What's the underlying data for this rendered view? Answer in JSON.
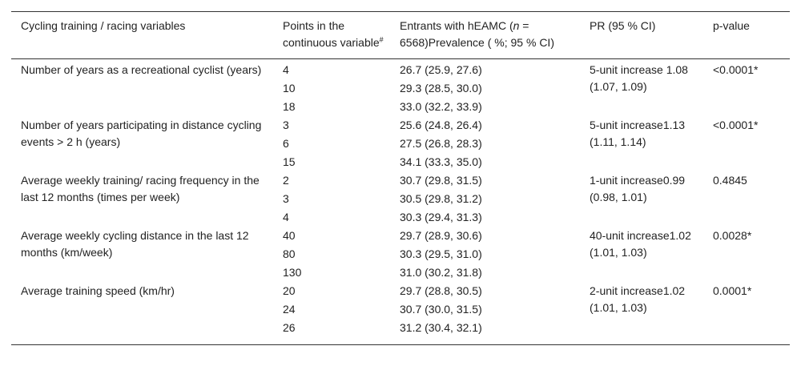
{
  "table": {
    "headers": {
      "variable": "Cycling training / racing variables",
      "points": "Points in the continuous variable",
      "points_sup": "#",
      "entrants_pre": "Entrants with hEAMC (",
      "entrants_n": "n",
      "entrants_post": " = 6568)Prevalence ( %; 95 % CI)",
      "pr": "PR (95 % CI)",
      "pvalue": "p-value"
    },
    "rows": [
      {
        "variable": "Number of years as a recreational cyclist (years)",
        "points": [
          "4",
          "10",
          "18"
        ],
        "prevalence": [
          "26.7 (25.9, 27.6)",
          "29.3 (28.5, 30.0)",
          "33.0 (32.2, 33.9)"
        ],
        "pr": "5-unit increase 1.08 (1.07, 1.09)",
        "pvalue": "<0.0001*"
      },
      {
        "variable": "Number of years participating in distance cycling events > 2 h (years)",
        "points": [
          "3",
          "6",
          "15"
        ],
        "prevalence": [
          "25.6 (24.8, 26.4)",
          "27.5 (26.8, 28.3)",
          "34.1 (33.3, 35.0)"
        ],
        "pr": "5-unit increase1.13 (1.11, 1.14)",
        "pvalue": "<0.0001*"
      },
      {
        "variable": "Average weekly training/ racing frequency in the last 12 months (times per week)",
        "points": [
          "2",
          "3",
          "4"
        ],
        "prevalence": [
          "30.7 (29.8, 31.5)",
          "30.5 (29.8, 31.2)",
          "30.3 (29.4, 31.3)"
        ],
        "pr": "1-unit increase0.99 (0.98, 1.01)",
        "pvalue": "0.4845"
      },
      {
        "variable": "Average weekly cycling distance in the last 12 months (km/week)",
        "points": [
          "40",
          "80",
          "130"
        ],
        "prevalence": [
          "29.7 (28.9, 30.6)",
          "30.3 (29.5, 31.0)",
          "31.0 (30.2, 31.8)"
        ],
        "pr": "40-unit increase1.02 (1.01, 1.03)",
        "pvalue": "0.0028*"
      },
      {
        "variable": "Average training speed (km/hr)",
        "points": [
          "20",
          "24",
          "26"
        ],
        "prevalence": [
          "29.7 (28.8, 30.5)",
          "30.7 (30.0, 31.5)",
          "31.2 (30.4, 32.1)"
        ],
        "pr": "2-unit increase1.02 (1.01, 1.03)",
        "pvalue": "0.0001*"
      }
    ]
  }
}
